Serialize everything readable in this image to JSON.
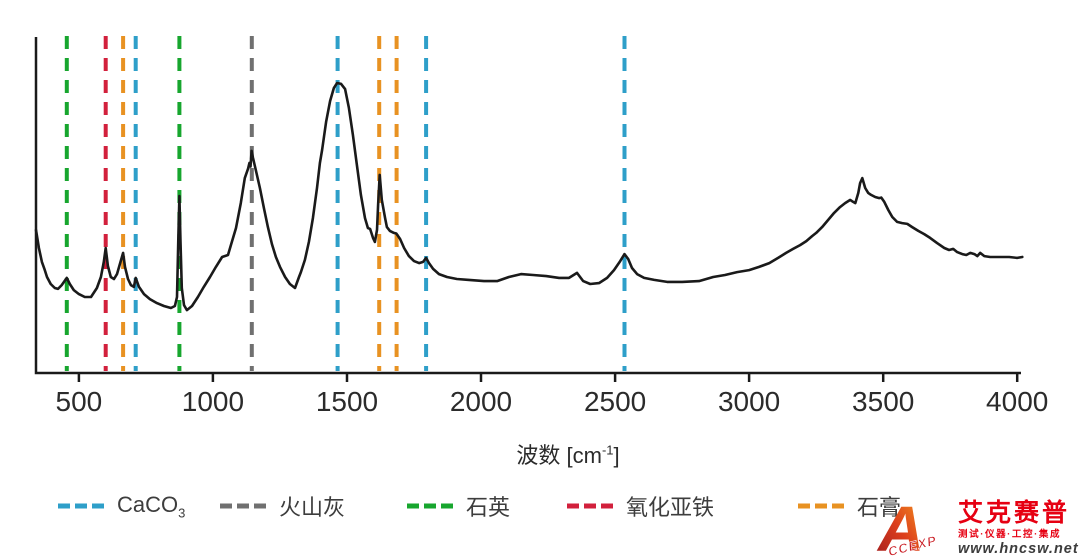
{
  "figure": {
    "background": "#ffffff",
    "axis_color": "#1a1a1a",
    "curve_color": "#1a1a1a",
    "tick_label_color": "#2b2b2b",
    "legend_text_color": "#3d3d3d",
    "xlabel_parts": {
      "pre": "波数 [cm",
      "sup": "-1",
      "post": "]"
    }
  },
  "chart_data": {
    "type": "line",
    "title": "",
    "xlabel": "波数 [cm⁻¹]",
    "ylabel": "",
    "xlim": [
      340,
      4020
    ],
    "ylim": [
      0,
      115
    ],
    "y_axis_visible_but_unlabeled": true,
    "grid": false,
    "legend_position": "bottom",
    "x_ticks": [
      500,
      1000,
      1500,
      2000,
      2500,
      3000,
      3500,
      4000
    ],
    "marker_lines": [
      {
        "name": "caco3",
        "label": "CaCO",
        "label_sub": "3",
        "color": "#2E9FC9",
        "wavenumbers": [
          712,
          1465,
          1795,
          2535
        ]
      },
      {
        "name": "volcanic-ash",
        "label": "火山灰",
        "color": "#707070",
        "wavenumbers": [
          1145
        ]
      },
      {
        "name": "quartz",
        "label": "石英",
        "color": "#17A62E",
        "wavenumbers": [
          455,
          875
        ]
      },
      {
        "name": "iron-oxide",
        "label": "氧化亚铁",
        "color": "#D2203C",
        "wavenumbers": [
          600
        ]
      },
      {
        "name": "gypsum",
        "label": "石膏",
        "color": "#E89222",
        "wavenumbers": [
          665,
          1620,
          1685
        ]
      }
    ],
    "series": [
      {
        "name": "spectrum",
        "points": [
          [
            340,
            49.3
          ],
          [
            351,
            43.1
          ],
          [
            362,
            38.3
          ],
          [
            373,
            35.5
          ],
          [
            381,
            33.1
          ],
          [
            395,
            30.7
          ],
          [
            410,
            29.3
          ],
          [
            422,
            29.0
          ],
          [
            436,
            30.3
          ],
          [
            455,
            32.8
          ],
          [
            466,
            30.7
          ],
          [
            481,
            28.6
          ],
          [
            500,
            27.2
          ],
          [
            522,
            26.2
          ],
          [
            545,
            26.2
          ],
          [
            567,
            29.3
          ],
          [
            582,
            33.1
          ],
          [
            593,
            38.3
          ],
          [
            600,
            43.1
          ],
          [
            608,
            36.9
          ],
          [
            619,
            33.1
          ],
          [
            631,
            32.4
          ],
          [
            642,
            34.1
          ],
          [
            653,
            37.6
          ],
          [
            665,
            41.4
          ],
          [
            672,
            36.6
          ],
          [
            683,
            32.4
          ],
          [
            694,
            30.3
          ],
          [
            705,
            29.7
          ],
          [
            712,
            32.8
          ],
          [
            724,
            29.7
          ],
          [
            743,
            27.2
          ],
          [
            765,
            25.5
          ],
          [
            791,
            24.1
          ],
          [
            817,
            23.1
          ],
          [
            843,
            22.4
          ],
          [
            858,
            23.1
          ],
          [
            866,
            26.2
          ],
          [
            871,
            47.6
          ],
          [
            875,
            61.0
          ],
          [
            879,
            45.2
          ],
          [
            884,
            29.3
          ],
          [
            892,
            23.4
          ],
          [
            903,
            21.7
          ],
          [
            922,
            23.1
          ],
          [
            944,
            26.2
          ],
          [
            966,
            29.7
          ],
          [
            989,
            33.1
          ],
          [
            1011,
            36.6
          ],
          [
            1034,
            40.0
          ],
          [
            1056,
            40.7
          ],
          [
            1067,
            44.1
          ],
          [
            1086,
            50.0
          ],
          [
            1104,
            58.6
          ],
          [
            1119,
            67.2
          ],
          [
            1131,
            70.5
          ],
          [
            1136,
            72.4
          ],
          [
            1140,
            71.2
          ],
          [
            1144,
            76.6
          ],
          [
            1149,
            74.3
          ],
          [
            1160,
            70.0
          ],
          [
            1175,
            63.8
          ],
          [
            1190,
            56.9
          ],
          [
            1205,
            50.3
          ],
          [
            1220,
            44.5
          ],
          [
            1235,
            40.0
          ],
          [
            1250,
            36.6
          ],
          [
            1269,
            33.1
          ],
          [
            1287,
            30.7
          ],
          [
            1306,
            29.3
          ],
          [
            1321,
            33.1
          ],
          [
            1328,
            34.8
          ],
          [
            1343,
            39.0
          ],
          [
            1358,
            45.2
          ],
          [
            1373,
            53.4
          ],
          [
            1388,
            63.8
          ],
          [
            1399,
            72.4
          ],
          [
            1407,
            76.9
          ],
          [
            1422,
            86.6
          ],
          [
            1437,
            93.8
          ],
          [
            1451,
            98.3
          ],
          [
            1463,
            100.0
          ],
          [
            1478,
            99.7
          ],
          [
            1493,
            97.9
          ],
          [
            1507,
            91.4
          ],
          [
            1522,
            82.1
          ],
          [
            1537,
            71.7
          ],
          [
            1552,
            61.4
          ],
          [
            1567,
            53.4
          ],
          [
            1578,
            50.0
          ],
          [
            1586,
            49.7
          ],
          [
            1597,
            46.6
          ],
          [
            1604,
            45.2
          ],
          [
            1612,
            49.3
          ],
          [
            1616,
            57.9
          ],
          [
            1622,
            68.3
          ],
          [
            1630,
            59.7
          ],
          [
            1642,
            53.4
          ],
          [
            1649,
            50.3
          ],
          [
            1660,
            49.0
          ],
          [
            1675,
            48.3
          ],
          [
            1684,
            48.1
          ],
          [
            1698,
            46.2
          ],
          [
            1713,
            43.1
          ],
          [
            1731,
            40.3
          ],
          [
            1750,
            38.6
          ],
          [
            1769,
            37.9
          ],
          [
            1784,
            38.3
          ],
          [
            1795,
            39.7
          ],
          [
            1806,
            37.9
          ],
          [
            1821,
            35.9
          ],
          [
            1843,
            34.1
          ],
          [
            1873,
            33.1
          ],
          [
            1910,
            32.4
          ],
          [
            1955,
            32.1
          ],
          [
            2011,
            31.7
          ],
          [
            2060,
            31.7
          ],
          [
            2104,
            33.1
          ],
          [
            2149,
            34.1
          ],
          [
            2194,
            33.8
          ],
          [
            2243,
            33.4
          ],
          [
            2291,
            32.8
          ],
          [
            2328,
            32.8
          ],
          [
            2358,
            34.5
          ],
          [
            2381,
            31.7
          ],
          [
            2407,
            30.7
          ],
          [
            2440,
            31.0
          ],
          [
            2470,
            32.8
          ],
          [
            2496,
            35.5
          ],
          [
            2519,
            38.6
          ],
          [
            2535,
            41.0
          ],
          [
            2549,
            39.3
          ],
          [
            2563,
            36.2
          ],
          [
            2582,
            34.1
          ],
          [
            2608,
            32.8
          ],
          [
            2646,
            32.1
          ],
          [
            2694,
            31.4
          ],
          [
            2750,
            31.4
          ],
          [
            2813,
            31.7
          ],
          [
            2866,
            33.1
          ],
          [
            2910,
            33.8
          ],
          [
            2955,
            34.8
          ],
          [
            3000,
            35.5
          ],
          [
            3037,
            36.6
          ],
          [
            3075,
            37.9
          ],
          [
            3108,
            39.7
          ],
          [
            3138,
            41.4
          ],
          [
            3164,
            42.8
          ],
          [
            3190,
            44.1
          ],
          [
            3213,
            45.5
          ],
          [
            3235,
            47.2
          ],
          [
            3250,
            48.3
          ],
          [
            3272,
            50.3
          ],
          [
            3295,
            52.8
          ],
          [
            3317,
            55.2
          ],
          [
            3339,
            57.2
          ],
          [
            3358,
            58.6
          ],
          [
            3377,
            59.7
          ],
          [
            3388,
            59.0
          ],
          [
            3396,
            58.6
          ],
          [
            3407,
            62.1
          ],
          [
            3414,
            65.5
          ],
          [
            3422,
            67.2
          ],
          [
            3433,
            63.8
          ],
          [
            3444,
            62.1
          ],
          [
            3455,
            61.4
          ],
          [
            3470,
            60.7
          ],
          [
            3485,
            60.3
          ],
          [
            3493,
            60.5
          ],
          [
            3504,
            59.0
          ],
          [
            3519,
            56.2
          ],
          [
            3534,
            53.8
          ],
          [
            3552,
            52.1
          ],
          [
            3571,
            51.7
          ],
          [
            3590,
            51.4
          ],
          [
            3608,
            50.3
          ],
          [
            3631,
            49.0
          ],
          [
            3653,
            47.9
          ],
          [
            3675,
            46.6
          ],
          [
            3701,
            44.8
          ],
          [
            3728,
            43.1
          ],
          [
            3746,
            42.4
          ],
          [
            3761,
            42.8
          ],
          [
            3776,
            41.7
          ],
          [
            3795,
            41.0
          ],
          [
            3810,
            40.7
          ],
          [
            3825,
            41.4
          ],
          [
            3840,
            41.0
          ],
          [
            3851,
            40.3
          ],
          [
            3862,
            41.4
          ],
          [
            3877,
            40.3
          ],
          [
            3899,
            40.0
          ],
          [
            3933,
            40.0
          ],
          [
            3970,
            40.0
          ],
          [
            4000,
            39.7
          ],
          [
            4019,
            40.0
          ]
        ]
      }
    ]
  },
  "watermark": {
    "logo_letter": "A",
    "logo_text": "CCEXP",
    "brand": "艾克赛普",
    "tagline": "测试·仪器·工控·集成",
    "url": "www.hncsw.net",
    "brand_color": "#E60012",
    "url_color": "#3C3C3C",
    "logo_gradient": [
      "#9E1B20",
      "#DD3F1C",
      "#F59B1E"
    ]
  }
}
